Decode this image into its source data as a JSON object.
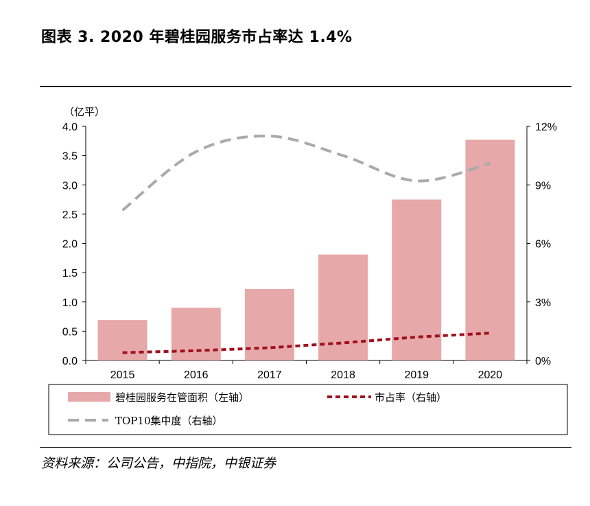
{
  "title": "图表 3. 2020 年碧桂园服务市占率达 1.4%",
  "source": "资料来源：公司公告，中指院，中银证券",
  "chart_data": {
    "type": "bar",
    "categories": [
      "2015",
      "2016",
      "2017",
      "2018",
      "2019",
      "2020"
    ],
    "y_left": {
      "unit_label": "（亿平）",
      "ylim": [
        0,
        4.0
      ],
      "ticks": [
        "0.0",
        "0.5",
        "1.0",
        "1.5",
        "2.0",
        "2.5",
        "3.0",
        "3.5",
        "4.0"
      ]
    },
    "y_right": {
      "ylim": [
        0,
        12
      ],
      "ticks": [
        "0%",
        "3%",
        "6%",
        "9%",
        "12%"
      ]
    },
    "series": [
      {
        "name": "碧桂园服务在管面积（左轴）",
        "type": "bar",
        "axis": "left",
        "color": "#E6A8A8",
        "values": [
          0.69,
          0.9,
          1.22,
          1.81,
          2.75,
          3.77
        ]
      },
      {
        "name": "市占率（右轴）",
        "type": "line",
        "axis": "right",
        "color": "#A0101E",
        "style": "dashed",
        "values": [
          0.4,
          0.5,
          0.65,
          0.9,
          1.2,
          1.4
        ]
      },
      {
        "name": "TOP10集中度（右轴）",
        "type": "line",
        "axis": "right",
        "color": "#AAAAAA",
        "style": "dashed",
        "values": [
          7.7,
          10.7,
          11.5,
          10.5,
          9.2,
          10.1
        ]
      }
    ],
    "grid": false,
    "legend_position": "bottom"
  }
}
